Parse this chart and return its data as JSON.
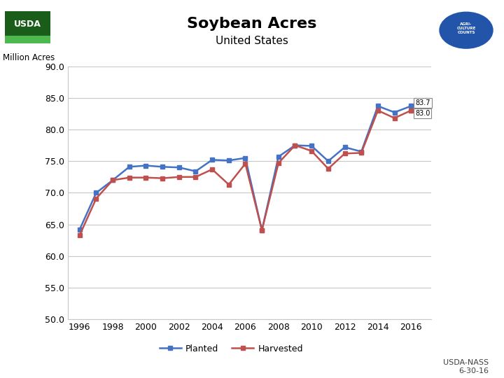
{
  "title": "Soybean Acres",
  "subtitle": "United States",
  "ylabel": "Million Acres",
  "years": [
    1996,
    1997,
    1998,
    1999,
    2000,
    2001,
    2002,
    2003,
    2004,
    2005,
    2006,
    2007,
    2008,
    2009,
    2010,
    2011,
    2012,
    2013,
    2014,
    2015,
    2016
  ],
  "planted": [
    64.2,
    70.0,
    72.0,
    74.1,
    74.3,
    74.1,
    74.0,
    73.4,
    75.2,
    75.1,
    75.5,
    64.1,
    75.7,
    77.5,
    77.4,
    75.0,
    77.2,
    76.5,
    83.7,
    82.7,
    83.7
  ],
  "harvested": [
    63.3,
    69.1,
    72.0,
    72.4,
    72.4,
    72.3,
    72.5,
    72.5,
    73.7,
    71.3,
    74.6,
    64.1,
    74.7,
    77.5,
    76.6,
    73.8,
    76.2,
    76.3,
    83.0,
    81.8,
    83.0
  ],
  "planted_color": "#4472C4",
  "harvested_color": "#C0504D",
  "ylim": [
    50.0,
    90.0
  ],
  "yticks": [
    50.0,
    55.0,
    60.0,
    65.0,
    70.0,
    75.0,
    80.0,
    85.0,
    90.0
  ],
  "xticks": [
    1996,
    1998,
    2000,
    2002,
    2004,
    2006,
    2008,
    2010,
    2012,
    2014,
    2016
  ],
  "annotation_planted_label": "83.7",
  "annotation_harvested_label": "83.0",
  "background_color": "#ffffff",
  "plot_bg_color": "#ffffff",
  "grid_color": "#c8c8c8",
  "footer_text": "USDA-NASS\n6-30-16",
  "marker": "s",
  "marker_size": 4,
  "line_width": 1.8,
  "title_fontsize": 16,
  "subtitle_fontsize": 11,
  "tick_fontsize": 9,
  "legend_fontsize": 9,
  "ylabel_fontsize": 8.5,
  "footer_fontsize": 8
}
